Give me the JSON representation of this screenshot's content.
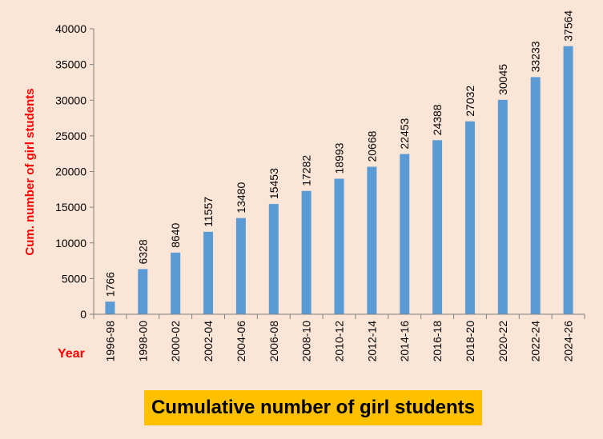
{
  "chart_data": {
    "type": "bar",
    "title": "Cumulative number of girl students",
    "xlabel": "Year",
    "ylabel": "Cum. number of girl students",
    "ylim": [
      0,
      40000
    ],
    "yticks": [
      "0",
      "5000",
      "10000",
      "15000",
      "20000",
      "25000",
      "30000",
      "35000",
      "40000"
    ],
    "categories": [
      "1996-98",
      "1998-00",
      "2000-02",
      "2002-04",
      "2004-06",
      "2006-08",
      "2008-10",
      "2010-12",
      "2012-14",
      "2014-16",
      "2016-18",
      "2018-20",
      "2020-22",
      "2022-24",
      "2024-26"
    ],
    "values": [
      1766,
      6328,
      8640,
      11557,
      13480,
      15453,
      17282,
      18993,
      20668,
      22453,
      24388,
      27032,
      30045,
      33233,
      37564
    ],
    "grid": false,
    "legend": "none",
    "colors": {
      "bar": "#5b9bd5",
      "axis_label": "#ff0000",
      "title_background": "#ffc000",
      "background": "#fbe5d6"
    }
  }
}
